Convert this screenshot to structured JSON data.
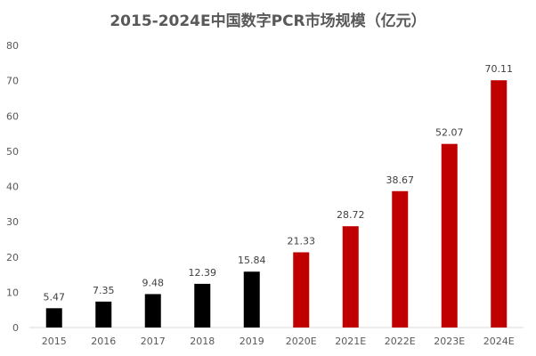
{
  "chart_data": {
    "type": "bar",
    "title": "2015-2024E中国数字PCR市场规模（亿元）",
    "categories": [
      "2015",
      "2016",
      "2017",
      "2018",
      "2019",
      "2020E",
      "2021E",
      "2022E",
      "2023E",
      "2024E"
    ],
    "values": [
      5.47,
      7.35,
      9.48,
      12.39,
      15.84,
      21.33,
      28.72,
      38.67,
      52.07,
      70.11
    ],
    "data_labels": [
      "5.47",
      "7.35",
      "9.48",
      "12.39",
      "15.84",
      "21.33",
      "28.72",
      "38.67",
      "52.07",
      "70.11"
    ],
    "colors": [
      "#000000",
      "#000000",
      "#000000",
      "#000000",
      "#000000",
      "#c00000",
      "#c00000",
      "#c00000",
      "#c00000",
      "#c00000"
    ],
    "xlabel": "",
    "ylabel": "",
    "ylim": [
      0,
      80
    ],
    "yticks": [
      0,
      10,
      20,
      30,
      40,
      50,
      60,
      70,
      80
    ],
    "grid": false,
    "legend": "none",
    "axis_color": "#d9d9d9"
  }
}
